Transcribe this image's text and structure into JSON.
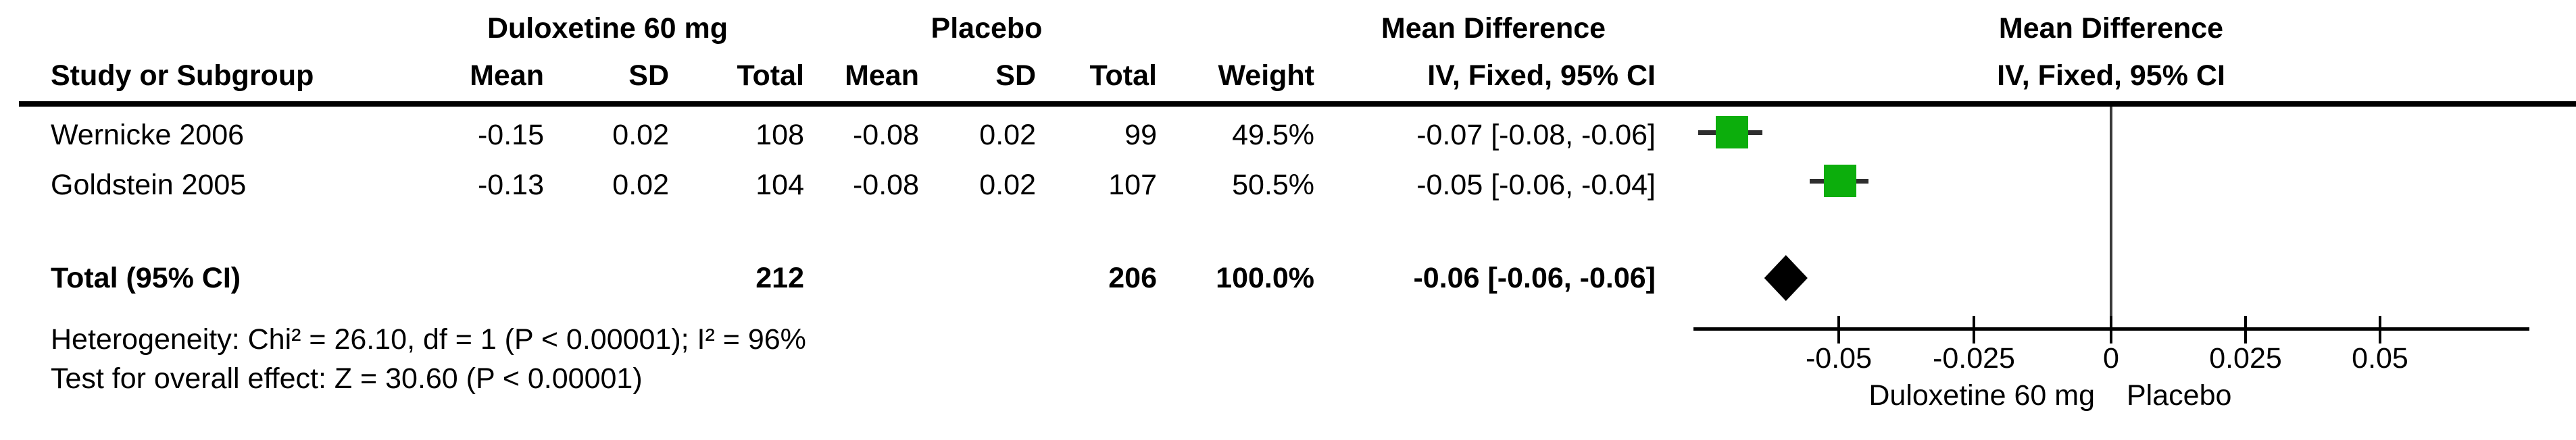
{
  "table": {
    "group_headers": {
      "experimental": "Duloxetine 60 mg",
      "control": "Placebo",
      "effect": "Mean Difference",
      "effect_plot": "Mean Difference"
    },
    "col_headers": {
      "study": "Study or Subgroup",
      "mean_e": "Mean",
      "sd_e": "SD",
      "total_e": "Total",
      "mean_c": "Mean",
      "sd_c": "SD",
      "total_c": "Total",
      "weight": "Weight",
      "ci": "IV, Fixed, 95% CI",
      "ci_plot": "IV, Fixed, 95% CI"
    },
    "studies": [
      {
        "name": "Wernicke 2006",
        "mean_e": "-0.15",
        "sd_e": "0.02",
        "total_e": "108",
        "mean_c": "-0.08",
        "sd_c": "0.02",
        "total_c": "99",
        "weight": "49.5%",
        "ci_text": "-0.07 [-0.08, -0.06]"
      },
      {
        "name": "Goldstein 2005",
        "mean_e": "-0.13",
        "sd_e": "0.02",
        "total_e": "104",
        "mean_c": "-0.08",
        "sd_c": "0.02",
        "total_c": "107",
        "weight": "50.5%",
        "ci_text": "-0.05 [-0.06, -0.04]"
      }
    ],
    "total_row": {
      "label": "Total (95% CI)",
      "total_e": "212",
      "total_c": "206",
      "weight": "100.0%",
      "ci_text": "-0.06 [-0.06, -0.06]"
    },
    "footer": {
      "heterogeneity": "Heterogeneity: Chi² = 26.10, df = 1 (P < 0.00001); I² = 96%",
      "overall_effect": "Test for overall effect: Z = 30.60 (P < 0.00001)"
    }
  },
  "chart_data": {
    "type": "forest",
    "title": "Mean Difference, IV, Fixed, 95% CI",
    "x_axis": {
      "range": [
        -0.077,
        0.077
      ],
      "ticks": [
        -0.05,
        -0.025,
        0,
        0.025,
        0.05
      ],
      "tick_labels": [
        "-0.05",
        "-0.025",
        "0",
        "0.025",
        "0.05"
      ],
      "zero_line": 0,
      "left_label": "Duloxetine 60 mg",
      "right_label": "Placebo"
    },
    "studies": [
      {
        "name": "Wernicke 2006",
        "md": -0.07,
        "ci_low": -0.0762,
        "ci_high": -0.0643,
        "weight_pct": 49.5
      },
      {
        "name": "Goldstein 2005",
        "md": -0.05,
        "ci_low": -0.0556,
        "ci_high": -0.0447,
        "weight_pct": 50.5
      }
    ],
    "total": {
      "md": -0.06,
      "ci_low": -0.064,
      "ci_high": -0.056
    },
    "marker_color": "#0cae0c",
    "diamond_color": "#000000",
    "whisker_color": "#2e2e2e"
  }
}
